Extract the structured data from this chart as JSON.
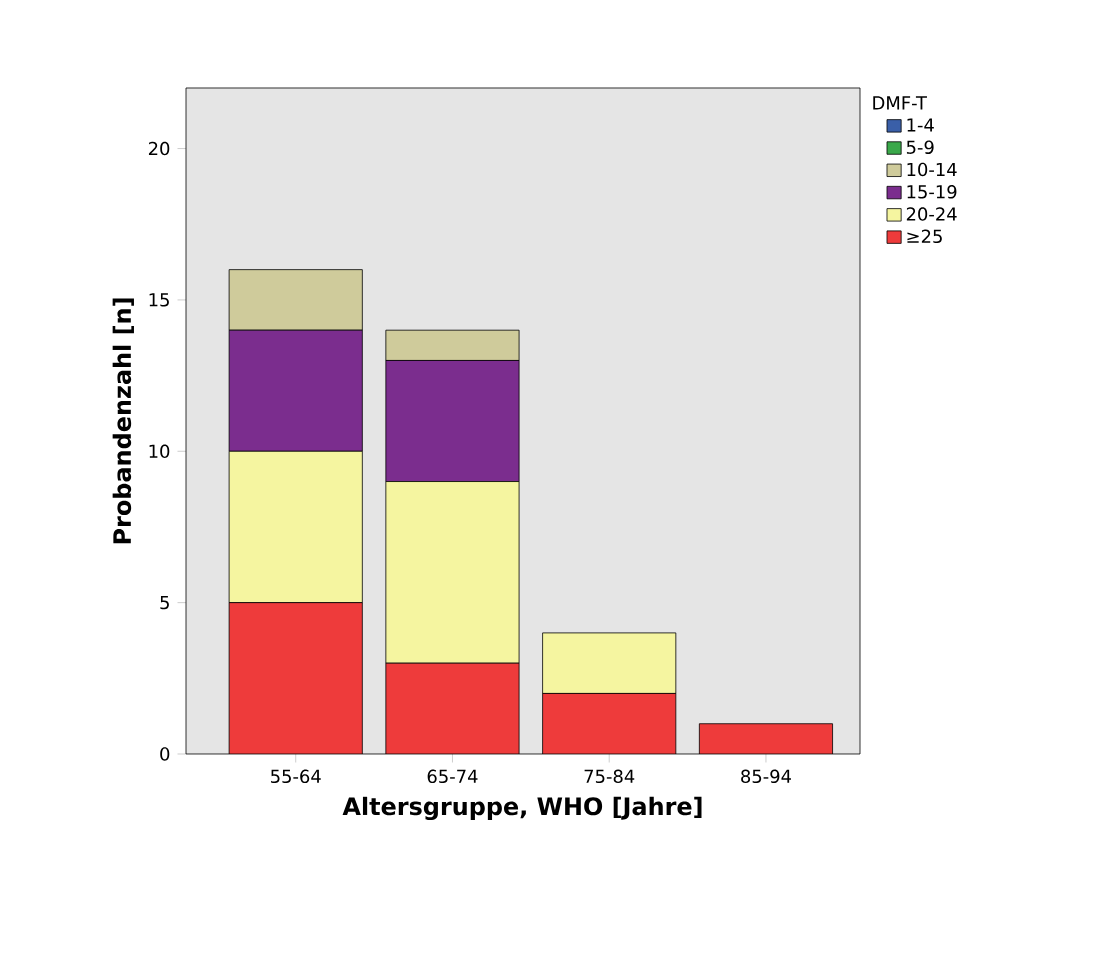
{
  "chart_data": {
    "type": "bar",
    "stacked": true,
    "xlabel": "Altersgruppe, WHO [Jahre]",
    "ylabel": "Probandenzahl [n]",
    "legend_title": "DMF-T",
    "legend": "top right",
    "categories": [
      "55-64",
      "65-74",
      "75-84",
      "85-94"
    ],
    "ylim": [
      0,
      22
    ],
    "yticks": [
      0,
      5,
      10,
      15,
      20
    ],
    "series": [
      {
        "name": "≥25",
        "color": "#ee3b3b",
        "values": [
          5,
          3,
          2,
          1
        ]
      },
      {
        "name": "20-24",
        "color": "#f5f5a0",
        "values": [
          5,
          6,
          2,
          0
        ]
      },
      {
        "name": "15-19",
        "color": "#7b2d8e",
        "values": [
          4,
          4,
          0,
          0
        ]
      },
      {
        "name": "10-14",
        "color": "#cfcb9b",
        "values": [
          2,
          1,
          0,
          0
        ]
      },
      {
        "name": "5-9",
        "color": "#3aa84a",
        "values": [
          0,
          0,
          0,
          0
        ]
      },
      {
        "name": "1-4",
        "color": "#3a5fa8",
        "values": [
          0,
          0,
          0,
          0
        ]
      }
    ]
  }
}
